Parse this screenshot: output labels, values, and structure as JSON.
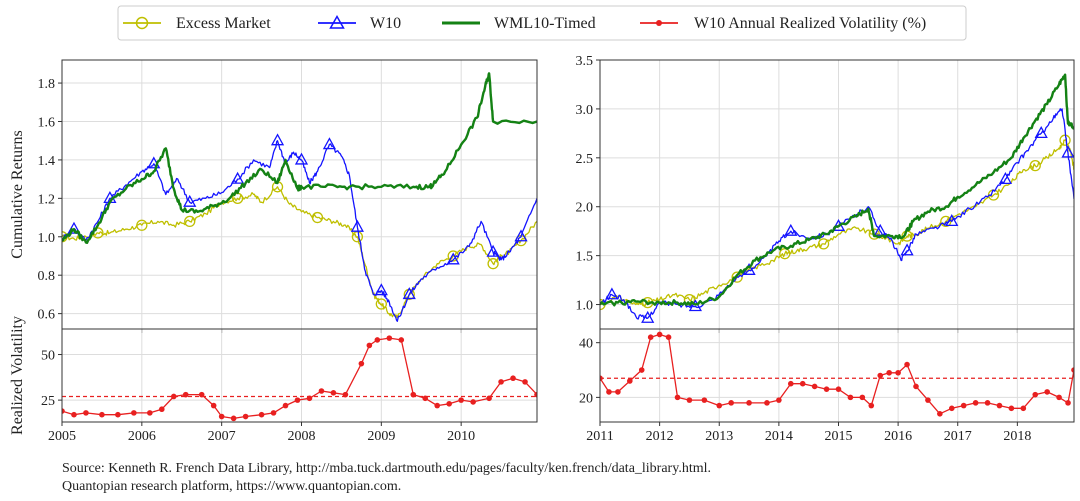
{
  "legend": {
    "placement": "top-center",
    "items": [
      {
        "label": "Excess Market",
        "color": "#bfbf00",
        "marker": "circle"
      },
      {
        "label": "W10",
        "color": "#1414ff",
        "marker": "triangle"
      },
      {
        "label": "WML10-Timed",
        "color": "#148214",
        "marker": "none"
      },
      {
        "label": "W10 Annual Realized Volatility (%)",
        "color": "#e82020",
        "marker": "dot"
      }
    ]
  },
  "source": {
    "line1": "Source: Kenneth R. French Data Library, http://mba.tuck.dartmouth.edu/pages/faculty/ken.french/data_library.html.",
    "line2": "Quantopian research platform, https://www.quantopian.com."
  },
  "chart_data": [
    {
      "id": "left-returns",
      "type": "line",
      "ylabel": "Cumulative Returns",
      "xlim": [
        2005.0,
        2010.95
      ],
      "ylim": [
        0.52,
        1.92
      ],
      "yticks": [
        "0.6",
        "0.8",
        "1.0",
        "1.2",
        "1.4",
        "1.6",
        "1.8"
      ],
      "xticks": [
        "2005",
        "2006",
        "2007",
        "2008",
        "2009",
        "2010"
      ],
      "grid": true,
      "series": [
        {
          "name": "Excess Market",
          "color": "#bfbf00",
          "marker": "circle",
          "x": [
            2005.0,
            2005.15,
            2005.3,
            2005.45,
            2005.6,
            2005.8,
            2006.0,
            2006.2,
            2006.4,
            2006.6,
            2006.8,
            2007.0,
            2007.2,
            2007.4,
            2007.5,
            2007.7,
            2007.85,
            2008.0,
            2008.2,
            2008.4,
            2008.55,
            2008.7,
            2008.8,
            2008.9,
            2009.0,
            2009.1,
            2009.2,
            2009.35,
            2009.5,
            2009.7,
            2009.9,
            2010.1,
            2010.25,
            2010.4,
            2010.5,
            2010.6,
            2010.75,
            2010.95
          ],
          "y": [
            1.0,
            0.99,
            1.0,
            1.02,
            1.02,
            1.04,
            1.06,
            1.08,
            1.06,
            1.08,
            1.12,
            1.18,
            1.2,
            1.22,
            1.18,
            1.26,
            1.17,
            1.13,
            1.1,
            1.08,
            1.06,
            1.0,
            0.85,
            0.7,
            0.65,
            0.6,
            0.58,
            0.7,
            0.78,
            0.86,
            0.9,
            0.95,
            0.96,
            0.86,
            0.9,
            0.92,
            0.98,
            1.08
          ]
        },
        {
          "name": "W10",
          "color": "#1414ff",
          "marker": "triangle",
          "x": [
            2005.0,
            2005.15,
            2005.3,
            2005.45,
            2005.6,
            2005.8,
            2006.0,
            2006.15,
            2006.3,
            2006.45,
            2006.6,
            2006.8,
            2007.0,
            2007.2,
            2007.4,
            2007.6,
            2007.7,
            2007.8,
            2007.9,
            2008.0,
            2008.1,
            2008.2,
            2008.35,
            2008.5,
            2008.6,
            2008.7,
            2008.8,
            2008.9,
            2009.0,
            2009.1,
            2009.2,
            2009.35,
            2009.5,
            2009.7,
            2009.9,
            2010.1,
            2010.25,
            2010.4,
            2010.5,
            2010.6,
            2010.75,
            2010.95
          ],
          "y": [
            0.99,
            1.04,
            0.98,
            1.08,
            1.2,
            1.27,
            1.34,
            1.38,
            1.22,
            1.3,
            1.18,
            1.2,
            1.23,
            1.3,
            1.4,
            1.36,
            1.5,
            1.38,
            1.44,
            1.4,
            1.28,
            1.34,
            1.48,
            1.42,
            1.32,
            1.05,
            0.82,
            0.7,
            0.72,
            0.66,
            0.56,
            0.7,
            0.78,
            0.84,
            0.88,
            0.95,
            1.08,
            0.92,
            0.88,
            0.92,
            1.0,
            1.2
          ]
        },
        {
          "name": "WML10-Timed",
          "color": "#148214",
          "marker": "none",
          "x": [
            2005.0,
            2005.15,
            2005.3,
            2005.45,
            2005.6,
            2005.8,
            2006.0,
            2006.15,
            2006.3,
            2006.4,
            2006.5,
            2006.7,
            2006.9,
            2007.1,
            2007.3,
            2007.5,
            2007.7,
            2007.8,
            2007.95,
            2008.0,
            2008.3,
            2008.6,
            2009.0,
            2009.4,
            2009.6,
            2009.65,
            2009.8,
            2010.0,
            2010.2,
            2010.3,
            2010.35,
            2010.4,
            2010.95
          ],
          "y": [
            0.98,
            1.04,
            0.97,
            1.06,
            1.18,
            1.25,
            1.3,
            1.34,
            1.46,
            1.25,
            1.14,
            1.13,
            1.16,
            1.2,
            1.28,
            1.35,
            1.28,
            1.4,
            1.25,
            1.26,
            1.26,
            1.26,
            1.26,
            1.26,
            1.26,
            1.27,
            1.34,
            1.48,
            1.62,
            1.78,
            1.85,
            1.6,
            1.6
          ]
        }
      ]
    },
    {
      "id": "left-volatility",
      "type": "line",
      "ylabel": "Realized Volatility",
      "xlim": [
        2005.0,
        2010.95
      ],
      "ylim": [
        13,
        64
      ],
      "yticks": [
        "25",
        "50"
      ],
      "xticks": [
        "2005",
        "2006",
        "2007",
        "2008",
        "2009",
        "2010"
      ],
      "grid": true,
      "reference_line": 27,
      "series": [
        {
          "name": "W10 Annual Realized Volatility (%)",
          "color": "#e82020",
          "marker": "dot",
          "x": [
            2005.0,
            2005.15,
            2005.3,
            2005.5,
            2005.7,
            2005.9,
            2006.1,
            2006.25,
            2006.4,
            2006.55,
            2006.75,
            2006.9,
            2007.0,
            2007.15,
            2007.3,
            2007.5,
            2007.65,
            2007.8,
            2007.95,
            2008.1,
            2008.25,
            2008.4,
            2008.55,
            2008.75,
            2008.85,
            2008.95,
            2009.1,
            2009.25,
            2009.4,
            2009.55,
            2009.7,
            2009.85,
            2010.0,
            2010.15,
            2010.35,
            2010.5,
            2010.65,
            2010.8,
            2010.95
          ],
          "y": [
            19,
            17,
            18,
            17,
            17,
            18,
            18,
            20,
            27,
            28,
            28,
            22,
            16,
            15,
            16,
            17,
            18,
            22,
            25,
            26,
            30,
            29,
            28,
            45,
            55,
            58,
            59,
            58,
            28,
            26,
            22,
            23,
            25,
            24,
            26,
            35,
            37,
            35,
            28
          ]
        }
      ]
    },
    {
      "id": "right-returns",
      "type": "line",
      "xlim": [
        2011.0,
        2018.95
      ],
      "ylim": [
        0.75,
        3.5
      ],
      "yticks": [
        "1.0",
        "1.5",
        "2.0",
        "2.5",
        "3.0",
        "3.5"
      ],
      "xticks": [
        "2011",
        "2012",
        "2013",
        "2014",
        "2015",
        "2016",
        "2017",
        "2018"
      ],
      "grid": true,
      "series": [
        {
          "name": "Excess Market",
          "color": "#bfbf00",
          "marker": "circle",
          "x": [
            2011.0,
            2011.3,
            2011.6,
            2011.8,
            2012.0,
            2012.25,
            2012.5,
            2012.75,
            2013.0,
            2013.3,
            2013.6,
            2013.9,
            2014.1,
            2014.3,
            2014.5,
            2014.75,
            2015.0,
            2015.3,
            2015.6,
            2015.8,
            2016.0,
            2016.15,
            2016.3,
            2016.5,
            2016.8,
            2017.0,
            2017.3,
            2017.6,
            2017.9,
            2018.1,
            2018.3,
            2018.5,
            2018.7,
            2018.8,
            2018.9,
            2018.95
          ],
          "y": [
            1.0,
            1.08,
            1.0,
            1.02,
            1.05,
            1.1,
            1.05,
            1.12,
            1.2,
            1.28,
            1.38,
            1.45,
            1.52,
            1.55,
            1.58,
            1.62,
            1.72,
            1.78,
            1.72,
            1.68,
            1.62,
            1.7,
            1.72,
            1.78,
            1.85,
            1.92,
            2.0,
            2.12,
            2.25,
            2.38,
            2.42,
            2.5,
            2.6,
            2.68,
            2.55,
            2.38
          ]
        },
        {
          "name": "W10",
          "color": "#1414ff",
          "marker": "triangle",
          "x": [
            2011.0,
            2011.2,
            2011.4,
            2011.6,
            2011.8,
            2012.0,
            2012.3,
            2012.6,
            2012.9,
            2013.2,
            2013.5,
            2013.8,
            2014.0,
            2014.2,
            2014.5,
            2014.8,
            2015.0,
            2015.3,
            2015.5,
            2015.7,
            2015.9,
            2016.05,
            2016.15,
            2016.3,
            2016.6,
            2016.9,
            2017.2,
            2017.5,
            2017.8,
            2018.0,
            2018.2,
            2018.4,
            2018.6,
            2018.75,
            2018.85,
            2018.95
          ],
          "y": [
            1.0,
            1.1,
            1.05,
            0.88,
            0.86,
            1.02,
            1.0,
            0.98,
            1.05,
            1.22,
            1.35,
            1.5,
            1.65,
            1.75,
            1.68,
            1.72,
            1.8,
            1.92,
            2.0,
            1.75,
            1.65,
            1.45,
            1.55,
            1.72,
            1.78,
            1.85,
            1.98,
            2.1,
            2.28,
            2.45,
            2.6,
            2.75,
            2.9,
            3.0,
            2.55,
            2.08
          ]
        },
        {
          "name": "WML10-Timed",
          "color": "#148214",
          "marker": "none",
          "x": [
            2011.0,
            2011.3,
            2011.6,
            2012.0,
            2012.3,
            2012.6,
            2013.0,
            2013.3,
            2013.6,
            2013.9,
            2014.2,
            2014.5,
            2014.8,
            2015.0,
            2015.3,
            2015.5,
            2015.6,
            2015.9,
            2016.1,
            2016.25,
            2016.5,
            2016.8,
            2017.0,
            2017.3,
            2017.6,
            2017.9,
            2018.1,
            2018.3,
            2018.5,
            2018.7,
            2018.8,
            2018.85,
            2018.95
          ],
          "y": [
            1.0,
            1.02,
            1.03,
            1.02,
            1.02,
            1.0,
            1.08,
            1.3,
            1.45,
            1.55,
            1.6,
            1.66,
            1.72,
            1.8,
            1.9,
            1.98,
            1.7,
            1.7,
            1.7,
            1.85,
            1.95,
            2.0,
            2.1,
            2.22,
            2.35,
            2.5,
            2.7,
            2.88,
            3.05,
            3.25,
            3.35,
            2.85,
            2.82
          ]
        }
      ]
    },
    {
      "id": "right-volatility",
      "type": "line",
      "xlim": [
        2011.0,
        2018.95
      ],
      "ylim": [
        11,
        45
      ],
      "yticks": [
        "20",
        "40"
      ],
      "xticks": [
        "2011",
        "2012",
        "2013",
        "2014",
        "2015",
        "2016",
        "2017",
        "2018"
      ],
      "grid": true,
      "reference_line": 27,
      "series": [
        {
          "name": "W10 Annual Realized Volatility (%)",
          "color": "#e82020",
          "marker": "dot",
          "x": [
            2011.0,
            2011.15,
            2011.3,
            2011.5,
            2011.7,
            2011.85,
            2012.0,
            2012.15,
            2012.3,
            2012.5,
            2012.75,
            2013.0,
            2013.2,
            2013.5,
            2013.8,
            2014.0,
            2014.2,
            2014.4,
            2014.6,
            2014.8,
            2015.0,
            2015.2,
            2015.4,
            2015.55,
            2015.7,
            2015.85,
            2016.0,
            2016.15,
            2016.3,
            2016.5,
            2016.7,
            2016.9,
            2017.1,
            2017.3,
            2017.5,
            2017.7,
            2017.9,
            2018.1,
            2018.3,
            2018.5,
            2018.7,
            2018.85,
            2018.95
          ],
          "y": [
            27,
            22,
            22,
            26,
            30,
            42,
            43,
            42,
            20,
            19,
            19,
            17,
            18,
            18,
            18,
            19,
            25,
            25,
            24,
            23,
            23,
            20,
            20,
            17,
            28,
            29,
            29,
            32,
            24,
            19,
            14,
            16,
            17,
            18,
            18,
            17,
            16,
            16,
            21,
            22,
            20,
            18,
            30
          ]
        }
      ]
    }
  ]
}
